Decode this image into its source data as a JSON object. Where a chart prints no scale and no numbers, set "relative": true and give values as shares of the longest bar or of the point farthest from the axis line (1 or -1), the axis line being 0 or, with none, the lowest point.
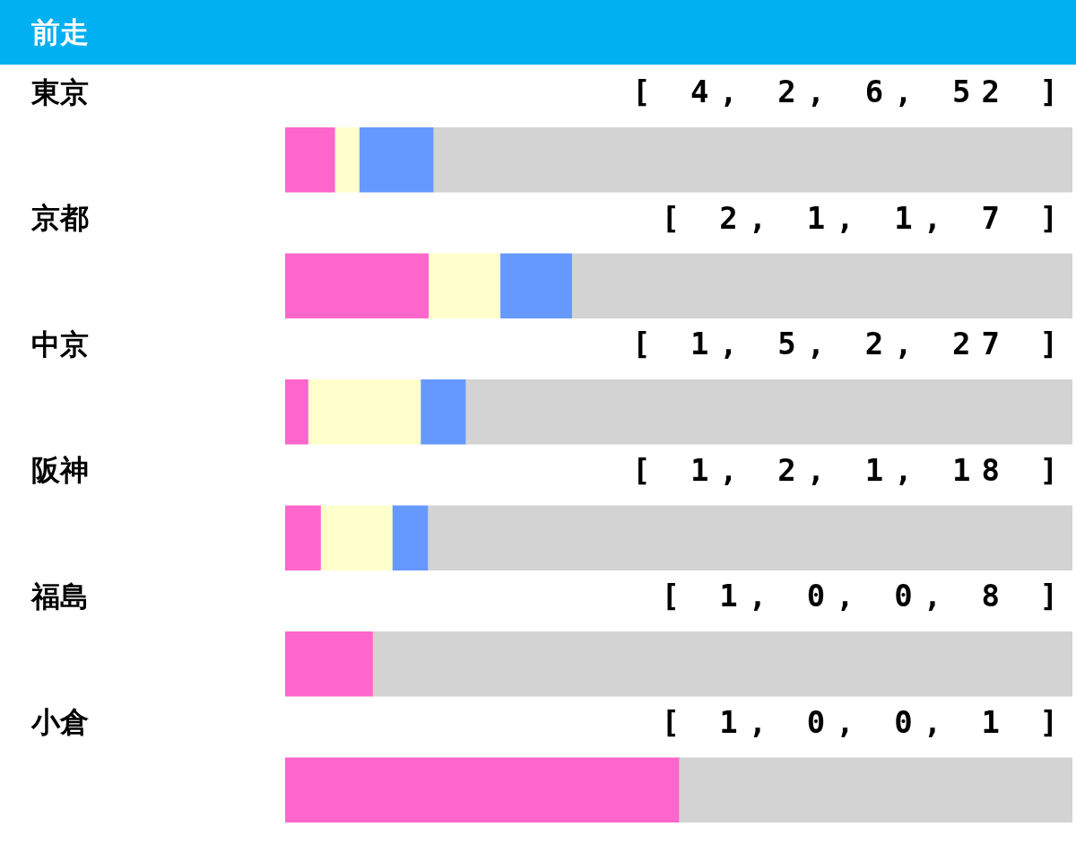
{
  "chart_data": {
    "type": "bar",
    "title": "前走",
    "orientation": "horizontal",
    "stacked": true,
    "relative": true,
    "categories": [
      "東京",
      "京都",
      "中京",
      "阪神",
      "福島",
      "小倉"
    ],
    "series": [
      {
        "color": "#ff66cc",
        "values": [
          0.063,
          0.182,
          0.029,
          0.045,
          0.111,
          0.5
        ]
      },
      {
        "color": "#ffffcc",
        "values": [
          0.031,
          0.091,
          0.143,
          0.091,
          0,
          0
        ]
      },
      {
        "color": "#6699ff",
        "values": [
          0.094,
          0.091,
          0.057,
          0.045,
          0,
          0
        ]
      },
      {
        "color": "#d3d3d3",
        "values": [
          0.812,
          0.636,
          0.771,
          0.819,
          0.889,
          0.5
        ]
      }
    ],
    "annotations": [
      "[ 4, 2, 6, 52 ]",
      "[ 2, 1, 1, 7 ]",
      "[ 1, 5, 2, 27 ]",
      "[ 1, 2, 1, 18 ]",
      "[ 1, 0, 0, 8 ]",
      "[ 1, 0, 0, 1 ]"
    ]
  }
}
